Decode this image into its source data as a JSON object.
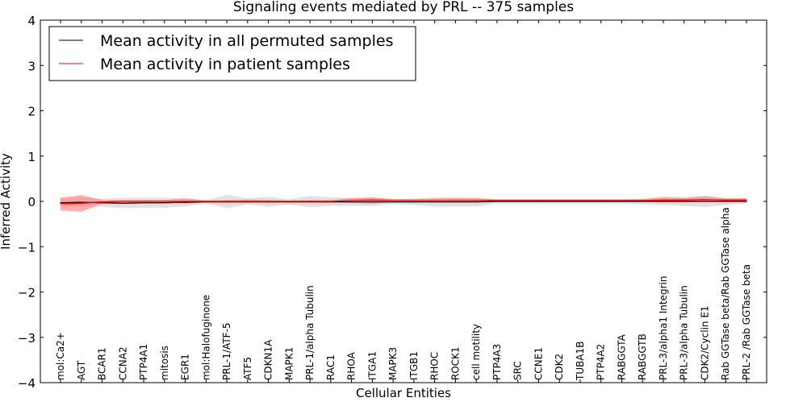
{
  "chart_data": {
    "type": "line",
    "title": "Signaling events mediated by PRL -- 375 samples",
    "xlabel": "Cellular Entities",
    "ylabel": "Inferred Activity",
    "ylim": [
      -4,
      4
    ],
    "yticks": [
      -4,
      -3,
      -2,
      -1,
      0,
      1,
      2,
      3,
      4
    ],
    "ytick_labels": [
      "−4",
      "−3",
      "−2",
      "−1",
      "0",
      "1",
      "2",
      "3",
      "4"
    ],
    "categories": [
      "mol:Ca2+",
      "AGT",
      "BCAR1",
      "CCNA2",
      "PTP4A1",
      "mitosis",
      "EGR1",
      "mol:Halofuginone",
      "PRL-1/ATF-5",
      "ATF5",
      "CDKN1A",
      "MAPK1",
      "PRL-1/alpha Tubulin",
      "RAC1",
      "RHOA",
      "ITGA1",
      "MAPK3",
      "ITGB1",
      "RHOC",
      "ROCK1",
      "cell motility",
      "PTP4A3",
      "SRC",
      "CCNE1",
      "CDK2",
      "TUBA1B",
      "PTP4A2",
      "RABGGTA",
      "RABGGTB",
      "PRL-3/alpha1 Integrin",
      "PRL-3/alpha Tubulin",
      "CDK2/Cyclin E1",
      "Rab GGTase beta/Rab GGTase alpha",
      "PRL-2 /Rab GGTase beta"
    ],
    "legend": {
      "location": "top-left",
      "entries": [
        {
          "label": "Mean activity in all permuted samples",
          "color": "#000000"
        },
        {
          "label": "Mean activity in patient samples",
          "color": "#ff0000"
        }
      ]
    },
    "series": [
      {
        "name": "Mean activity in all permuted samples",
        "color": "#000000",
        "band_color": "#c8c8c8",
        "values": [
          -0.03,
          -0.02,
          -0.03,
          -0.04,
          -0.03,
          -0.03,
          -0.02,
          -0.01,
          -0.01,
          -0.01,
          -0.01,
          -0.01,
          -0.01,
          -0.01,
          -0.01,
          -0.01,
          -0.01,
          -0.01,
          -0.01,
          -0.01,
          -0.01,
          0.0,
          0.0,
          0.0,
          0.0,
          0.0,
          0.0,
          0.0,
          0.0,
          0.0,
          0.0,
          0.0,
          0.0,
          0.0
        ],
        "lower": [
          -0.13,
          -0.12,
          -0.12,
          -0.15,
          -0.14,
          -0.14,
          -0.11,
          -0.04,
          -0.15,
          -0.07,
          -0.12,
          -0.07,
          -0.13,
          -0.1,
          -0.1,
          -0.1,
          -0.06,
          -0.08,
          -0.11,
          -0.11,
          -0.11,
          -0.05,
          -0.05,
          -0.05,
          -0.05,
          -0.05,
          -0.05,
          -0.05,
          -0.07,
          -0.08,
          -0.1,
          -0.12,
          -0.08,
          -0.05
        ],
        "upper": [
          0.06,
          0.08,
          0.06,
          0.08,
          0.08,
          0.08,
          0.06,
          0.03,
          0.14,
          0.07,
          0.1,
          0.05,
          0.12,
          0.09,
          0.08,
          0.08,
          0.05,
          0.06,
          0.09,
          0.09,
          0.08,
          0.04,
          0.04,
          0.04,
          0.04,
          0.04,
          0.04,
          0.04,
          0.06,
          0.07,
          0.08,
          0.1,
          0.07,
          0.05
        ]
      },
      {
        "name": "Mean activity in patient samples",
        "color": "#ff0000",
        "band_color": "#ff7a7a",
        "values": [
          -0.05,
          -0.04,
          -0.01,
          0.0,
          0.0,
          0.0,
          0.0,
          0.0,
          0.0,
          0.0,
          0.0,
          0.0,
          0.0,
          0.0,
          0.02,
          0.03,
          0.02,
          0.02,
          0.02,
          0.02,
          0.02,
          0.02,
          0.02,
          0.02,
          0.02,
          0.02,
          0.02,
          0.02,
          0.02,
          0.03,
          0.03,
          0.04,
          0.03,
          0.03
        ],
        "lower": [
          -0.2,
          -0.23,
          -0.05,
          -0.02,
          -0.02,
          -0.02,
          -0.05,
          -0.01,
          -0.01,
          -0.01,
          -0.01,
          -0.01,
          -0.01,
          -0.01,
          -0.03,
          -0.05,
          -0.01,
          -0.01,
          -0.01,
          -0.01,
          -0.01,
          -0.01,
          -0.01,
          -0.01,
          -0.01,
          -0.01,
          -0.01,
          -0.01,
          -0.01,
          -0.02,
          -0.02,
          -0.01,
          -0.01,
          -0.01
        ],
        "upper": [
          0.08,
          0.14,
          0.03,
          0.03,
          0.03,
          0.03,
          0.07,
          0.02,
          0.03,
          0.04,
          0.03,
          0.02,
          0.03,
          0.03,
          0.07,
          0.09,
          0.05,
          0.05,
          0.06,
          0.07,
          0.07,
          0.05,
          0.05,
          0.05,
          0.05,
          0.05,
          0.05,
          0.05,
          0.05,
          0.1,
          0.08,
          0.12,
          0.07,
          0.07
        ]
      }
    ]
  }
}
